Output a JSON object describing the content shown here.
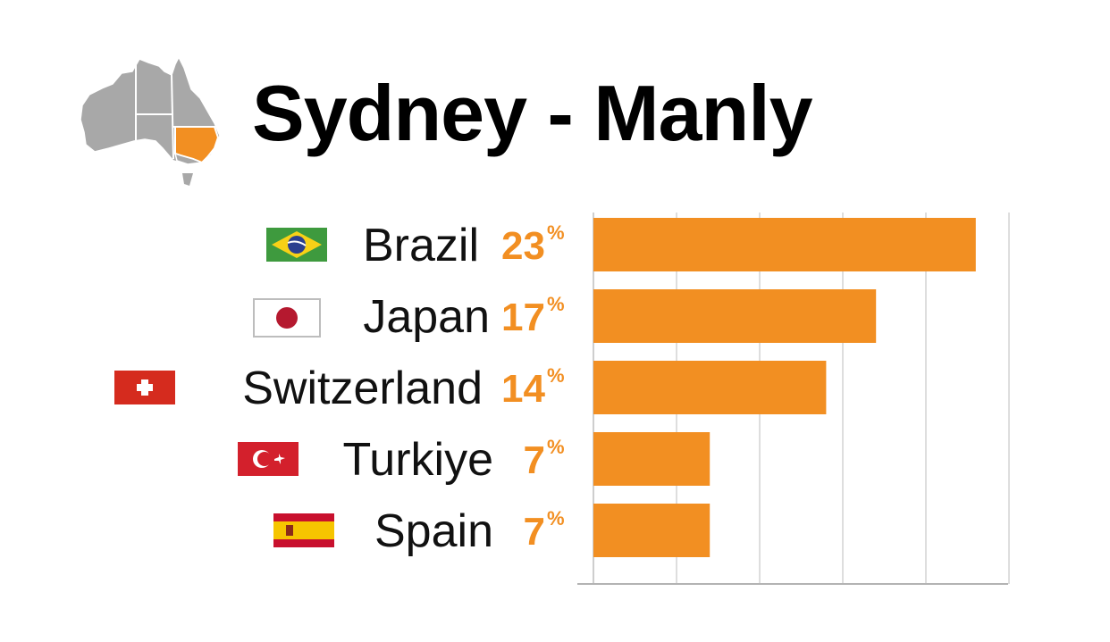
{
  "chart_data": {
    "type": "bar",
    "orientation": "horizontal",
    "title": "Sydney - Manly",
    "categories": [
      "Brazil",
      "Japan",
      "Switzerland",
      "Turkiye",
      "Spain"
    ],
    "values": [
      23,
      17,
      14,
      7,
      7
    ],
    "value_labels": [
      "23",
      "17",
      "14",
      "7",
      "7"
    ],
    "value_suffix": "%",
    "xlim": [
      0,
      25
    ],
    "grid": true,
    "flag_icons": [
      "brazil-flag-icon",
      "japan-flag-icon",
      "switzerland-flag-icon",
      "turkey-flag-icon",
      "spain-flag-icon"
    ]
  },
  "colors": {
    "accent": "#f28f22",
    "map_gray": "#a8a8a8",
    "grid": "#d4d4d4",
    "axis": "#b3b3b3"
  },
  "map_icon": "australia-map-nsw-highlighted-icon"
}
